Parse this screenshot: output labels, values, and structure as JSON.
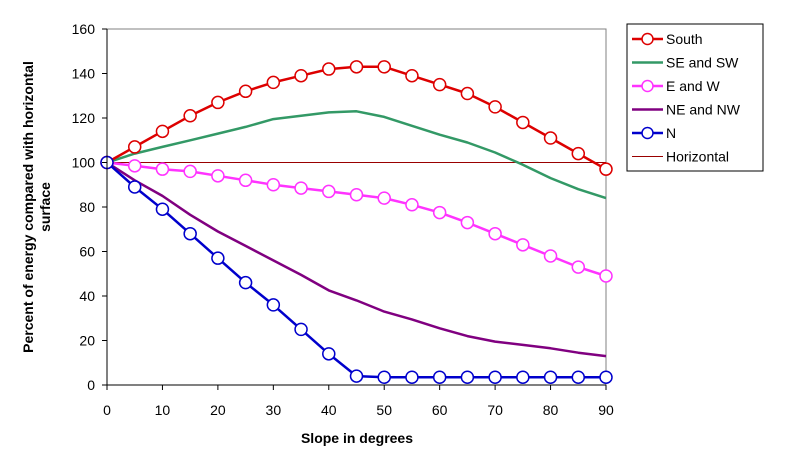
{
  "chart_data": {
    "type": "line",
    "title": "",
    "xlabel": "Slope in degrees",
    "ylabel_lines": [
      "Percent of energy compared with horizontal",
      "surface"
    ],
    "xlim": [
      0,
      90
    ],
    "ylim": [
      0,
      160
    ],
    "x_ticks": [
      0,
      10,
      20,
      30,
      40,
      50,
      60,
      70,
      80,
      90
    ],
    "y_ticks": [
      0,
      20,
      40,
      60,
      80,
      100,
      120,
      140,
      160
    ],
    "grid": false,
    "legend_position": "right",
    "x": [
      0,
      5,
      10,
      15,
      20,
      25,
      30,
      35,
      40,
      45,
      50,
      55,
      60,
      65,
      70,
      75,
      80,
      85,
      90
    ],
    "series": [
      {
        "name": "South",
        "color": "#dd0000",
        "marker": "circle",
        "values": [
          100,
          107,
          114,
          121,
          127,
          132,
          136,
          139,
          142,
          143,
          143,
          139,
          135,
          131,
          125,
          118,
          111,
          104,
          97
        ]
      },
      {
        "name": "SE and SW",
        "color": "#339966",
        "marker": "none",
        "values": [
          100,
          104,
          107,
          110,
          113,
          116,
          119.5,
          121,
          122.5,
          123,
          120.5,
          116.5,
          112.5,
          109,
          104.5,
          99,
          93,
          88,
          84
        ]
      },
      {
        "name": "E and W",
        "color": "#ff33ff",
        "marker": "circle",
        "values": [
          100,
          98.5,
          97,
          96,
          94,
          92,
          90,
          88.5,
          87,
          85.5,
          84,
          81,
          77.5,
          73,
          68,
          63,
          58,
          53,
          49
        ]
      },
      {
        "name": "NE and NW",
        "color": "#800080",
        "marker": "none",
        "values": [
          100,
          92,
          85,
          76.5,
          69,
          62.5,
          56,
          49.5,
          42.5,
          38,
          33,
          29.5,
          25.5,
          22,
          19.5,
          18,
          16.5,
          14.5,
          13
        ]
      },
      {
        "name": "N",
        "color": "#0000cc",
        "marker": "circle",
        "values": [
          100,
          89,
          79,
          68,
          57,
          46,
          36,
          25,
          14,
          4,
          3.5,
          3.5,
          3.5,
          3.5,
          3.5,
          3.5,
          3.5,
          3.5,
          3.5
        ]
      },
      {
        "name": "Horizontal",
        "color": "#990000",
        "marker": "none",
        "values": [
          100,
          100,
          100,
          100,
          100,
          100,
          100,
          100,
          100,
          100,
          100,
          100,
          100,
          100,
          100,
          100,
          100,
          100,
          100
        ]
      }
    ]
  }
}
